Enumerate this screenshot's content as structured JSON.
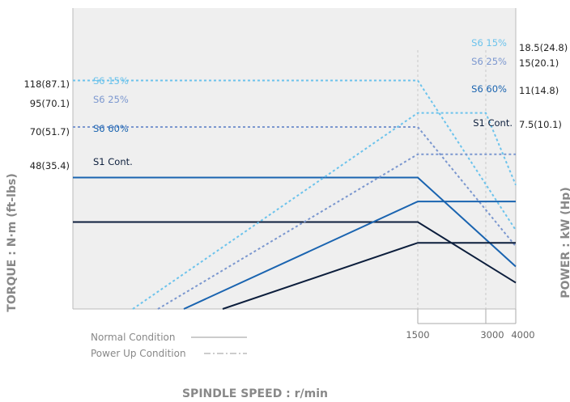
{
  "chart_data": {
    "type": "line",
    "xlabel": "SPINDLE SPEED : r/min",
    "ylabel_left": "TORQUE : N·m (ft-lbs)",
    "ylabel_right": "POWER : kW (Hp)",
    "x_ticks": [
      "1500",
      "3000",
      "4000"
    ],
    "torque_ticks": [
      "118(87.1)",
      "95(70.1)",
      "70(51.7)",
      "48(35.4)"
    ],
    "power_ticks": [
      "18.5(24.8)",
      "15(20.1)",
      "11(14.8)",
      "7.5(10.1)"
    ],
    "legend": {
      "normal": "Normal Condition",
      "power_up": "Power Up Condition"
    },
    "torque_series": [
      {
        "name": "S6 15%",
        "color": "#6cc3ec",
        "style": "dotted",
        "values": [
          [
            0,
            118
          ],
          [
            1500,
            118
          ],
          [
            4000,
            44
          ]
        ]
      },
      {
        "name": "S6 25%",
        "color": "#7b97cf",
        "style": "dotted",
        "values": [
          [
            0,
            95
          ],
          [
            1500,
            95
          ],
          [
            4000,
            36
          ]
        ]
      },
      {
        "name": "S6 60%",
        "color": "#1a64b0",
        "style": "solid",
        "values": [
          [
            0,
            70
          ],
          [
            1500,
            70
          ],
          [
            4000,
            26
          ]
        ]
      },
      {
        "name": "S1 Cont.",
        "color": "#0c1e3c",
        "style": "solid",
        "values": [
          [
            0,
            48
          ],
          [
            1500,
            48
          ],
          [
            4000,
            18
          ]
        ]
      }
    ],
    "power_series": [
      {
        "name": "S6 15%",
        "color": "#6cc3ec",
        "style": "dotted",
        "values": [
          [
            1500,
            18.5
          ],
          [
            3000,
            18.5
          ],
          [
            4000,
            12.4
          ]
        ]
      },
      {
        "name": "S6 25%",
        "color": "#7b97cf",
        "style": "dotted",
        "values": [
          [
            1500,
            15
          ],
          [
            4000,
            15
          ]
        ]
      },
      {
        "name": "S6 60%",
        "color": "#1a64b0",
        "style": "solid",
        "values": [
          [
            1500,
            11
          ],
          [
            4000,
            11
          ]
        ]
      },
      {
        "name": "S1 Cont.",
        "color": "#0c1e3c",
        "style": "solid",
        "values": [
          [
            1500,
            7.5
          ],
          [
            4000,
            7.5
          ]
        ]
      }
    ]
  }
}
